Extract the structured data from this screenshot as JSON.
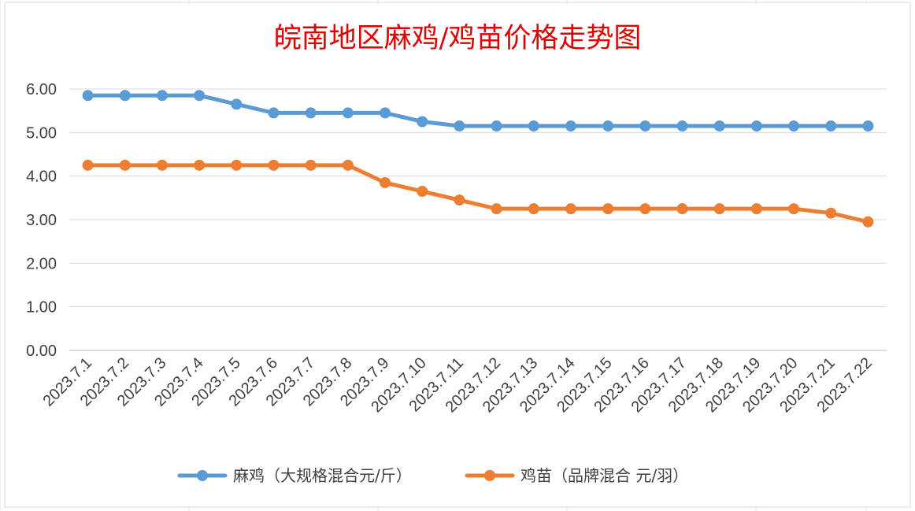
{
  "chart_data": {
    "type": "line",
    "title": "皖南地区麻鸡/鸡苗价格走势图",
    "xlabel": "",
    "ylabel": "",
    "ylim": [
      0,
      6
    ],
    "y_ticks": [
      "0.00",
      "1.00",
      "2.00",
      "3.00",
      "4.00",
      "5.00",
      "6.00"
    ],
    "grid": true,
    "legend_position": "bottom",
    "categories": [
      "2023.7.1",
      "2023.7.2",
      "2023.7.3",
      "2023.7.4",
      "2023.7.5",
      "2023.7.6",
      "2023.7.7",
      "2023.7.8",
      "2023.7.9",
      "2023.7.10",
      "2023.7.11",
      "2023.7.12",
      "2023.7.13",
      "2023.7.14",
      "2023.7.15",
      "2023.7.16",
      "2023.7.17",
      "2023.7.18",
      "2023.7.19",
      "2023.7.20",
      "2023.7.21",
      "2023.7.22"
    ],
    "series": [
      {
        "name": "麻鸡（大规格混合元/斤）",
        "color": "#5B9BD5",
        "values": [
          5.85,
          5.85,
          5.85,
          5.85,
          5.65,
          5.45,
          5.45,
          5.45,
          5.45,
          5.25,
          5.15,
          5.15,
          5.15,
          5.15,
          5.15,
          5.15,
          5.15,
          5.15,
          5.15,
          5.15,
          5.15,
          5.15
        ]
      },
      {
        "name": "鸡苗（品牌混合 元/羽）",
        "color": "#ED7D31",
        "values": [
          4.25,
          4.25,
          4.25,
          4.25,
          4.25,
          4.25,
          4.25,
          4.25,
          3.85,
          3.65,
          3.45,
          3.25,
          3.25,
          3.25,
          3.25,
          3.25,
          3.25,
          3.25,
          3.25,
          3.25,
          3.15,
          2.95
        ]
      }
    ],
    "title_color": "#E00000"
  }
}
